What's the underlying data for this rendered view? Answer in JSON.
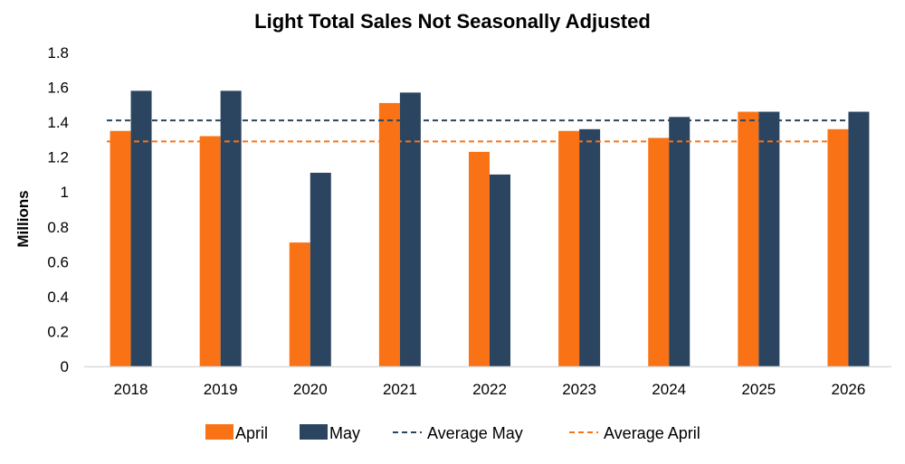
{
  "colors": {
    "april": "#f97316",
    "may": "#2b4560",
    "axis": "#d9d9d9"
  },
  "chart_data": {
    "type": "bar",
    "title": "Light Total Sales Not Seasonally Adjusted",
    "ylabel": "Millions",
    "xlabel": "",
    "ylim": [
      0,
      1.8
    ],
    "yticks": [
      "0",
      "0.2",
      "0.4",
      "0.6",
      "0.8",
      "1",
      "1.2",
      "1.4",
      "1.6",
      "1.8"
    ],
    "grid": false,
    "legend_position": "bottom",
    "categories": [
      "2018",
      "2019",
      "2020",
      "2021",
      "2022",
      "2023",
      "2024",
      "2025",
      "2026"
    ],
    "series": [
      {
        "name": "April",
        "values": [
          1.35,
          1.32,
          0.71,
          1.51,
          1.23,
          1.35,
          1.31,
          1.46,
          1.36
        ]
      },
      {
        "name": "May",
        "values": [
          1.58,
          1.58,
          1.11,
          1.57,
          1.1,
          1.36,
          1.43,
          1.46,
          1.46
        ]
      }
    ],
    "reference_lines": [
      {
        "name": "Average May",
        "value": 1.41,
        "style": "dashed"
      },
      {
        "name": "Average April",
        "value": 1.29,
        "style": "dashed"
      }
    ]
  }
}
